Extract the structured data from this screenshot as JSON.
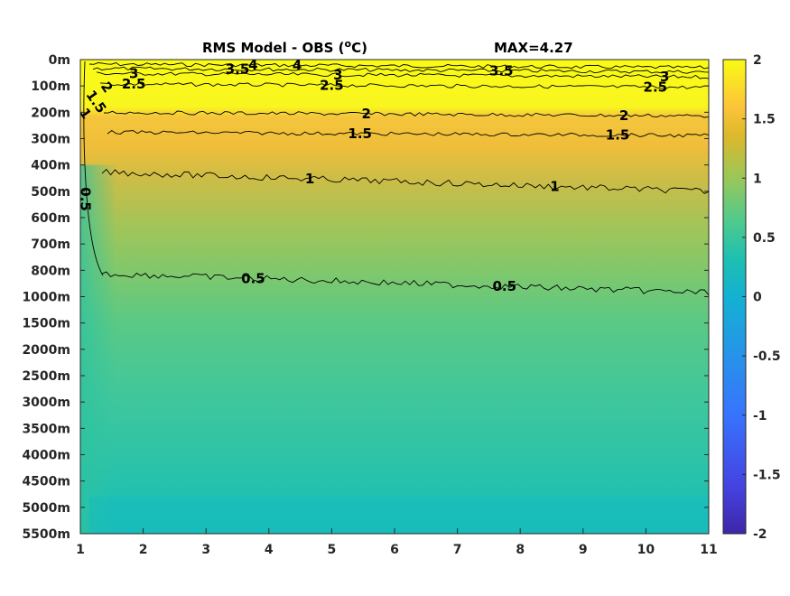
{
  "chart_data": {
    "type": "heatmap",
    "title": "RMS Model - OBS (",
    "title_super": "o",
    "title_unit": "C)",
    "annotation": "MAX=4.27",
    "x_ticks": [
      "1",
      "2",
      "3",
      "4",
      "5",
      "6",
      "7",
      "8",
      "9",
      "10",
      "11"
    ],
    "xlim": [
      1,
      11
    ],
    "y_ticks": [
      "0m",
      "100m",
      "200m",
      "300m",
      "400m",
      "500m",
      "600m",
      "700m",
      "800m",
      "1000m",
      "1500m",
      "2000m",
      "2500m",
      "3000m",
      "3500m",
      "4000m",
      "4500m",
      "5000m",
      "5500m"
    ],
    "colorbar": {
      "ticks": [
        "2",
        "1.5",
        "1",
        "0.5",
        "0",
        "-0.5",
        "-1",
        "-1.5",
        "-2"
      ],
      "range": [
        -2,
        2
      ],
      "colormap": [
        "#3e26a8",
        "#4443e1",
        "#3873fe",
        "#2694e8",
        "#13b1d2",
        "#1ebfb0",
        "#4fca8d",
        "#9ac759",
        "#ddb82b",
        "#fcc43a",
        "#f9fb15"
      ]
    },
    "contour_lines": [
      {
        "level": "4",
        "depth_index": 0.17,
        "labels": [
          {
            "x": 4.45,
            "text": "4"
          },
          {
            "x": 3.75,
            "text": "4"
          }
        ]
      },
      {
        "level": "3.5",
        "depth_index": 0.33,
        "labels": [
          {
            "x": 3.5,
            "text": "3.5"
          },
          {
            "x": 7.7,
            "text": "3.5"
          }
        ]
      },
      {
        "level": "3",
        "depth_index": 0.52,
        "labels": [
          {
            "x": 1.85,
            "text": "3"
          },
          {
            "x": 5.1,
            "text": "3"
          },
          {
            "x": 10.3,
            "text": "3"
          }
        ]
      },
      {
        "level": "2.5",
        "depth_index": 0.92,
        "labels": [
          {
            "x": 1.85,
            "text": "2.5"
          },
          {
            "x": 5.0,
            "text": "2.5"
          },
          {
            "x": 10.15,
            "text": "2.5"
          }
        ]
      },
      {
        "level": "2",
        "depth_index": 2.0,
        "labels": [
          {
            "x": 5.55,
            "text": "2"
          },
          {
            "x": 9.65,
            "text": "2"
          }
        ]
      },
      {
        "level": "1.5",
        "depth_index": 2.75,
        "labels": [
          {
            "x": 5.45,
            "text": "1.5"
          },
          {
            "x": 9.55,
            "text": "1.5"
          }
        ]
      },
      {
        "level": "1",
        "depth_index": 4.25,
        "labels": [
          {
            "x": 4.65,
            "text": "1"
          },
          {
            "x": 8.55,
            "text": "1"
          }
        ]
      },
      {
        "level": "0.5",
        "depth_index": 8.1,
        "labels": [
          {
            "x": 3.75,
            "text": "0.5"
          },
          {
            "x": 7.75,
            "text": "0.5"
          }
        ]
      }
    ],
    "left_labels": [
      {
        "text": "1.5",
        "x": 1.25,
        "depth_index": 1.6
      },
      {
        "text": "2",
        "x": 1.42,
        "depth_index": 1.05
      },
      {
        "text": "1",
        "x": 1.08,
        "depth_index": 2.05
      },
      {
        "text": "0.5",
        "x": 1.08,
        "depth_index": 5.3
      }
    ],
    "grid": false
  }
}
